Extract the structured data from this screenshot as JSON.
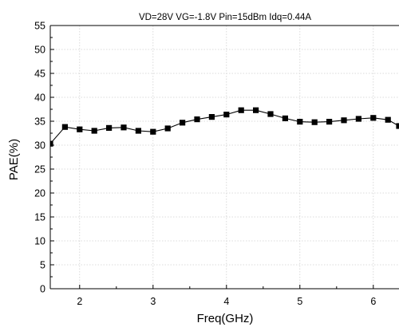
{
  "chart_data": {
    "type": "line",
    "title": "VD=28V   VG=-1.8V   Pin=15dBm   Idq=0.44A",
    "xlabel": "Freq(GHz)",
    "ylabel": "PAE(%)",
    "xlim": [
      1.6,
      6.35
    ],
    "ylim": [
      0,
      55
    ],
    "x_ticks": [
      2,
      3,
      4,
      5,
      6
    ],
    "y_ticks": [
      0,
      5,
      10,
      15,
      20,
      25,
      30,
      35,
      40,
      45,
      50,
      55
    ],
    "grid": true,
    "marker": "square",
    "series": [
      {
        "color": "#000000",
        "x": [
          1.6,
          1.8,
          2.0,
          2.2,
          2.4,
          2.6,
          2.8,
          3.0,
          3.2,
          3.4,
          3.6,
          3.8,
          4.0,
          4.2,
          4.4,
          4.6,
          4.8,
          5.0,
          5.2,
          5.4,
          5.6,
          5.8,
          6.0,
          6.2,
          6.35
        ],
        "y": [
          30.3,
          33.8,
          33.3,
          33.0,
          33.6,
          33.7,
          33.0,
          32.8,
          33.5,
          34.7,
          35.4,
          35.9,
          36.4,
          37.3,
          37.3,
          36.5,
          35.6,
          34.9,
          34.8,
          34.9,
          35.2,
          35.5,
          35.7,
          35.3,
          34.0
        ]
      }
    ]
  }
}
